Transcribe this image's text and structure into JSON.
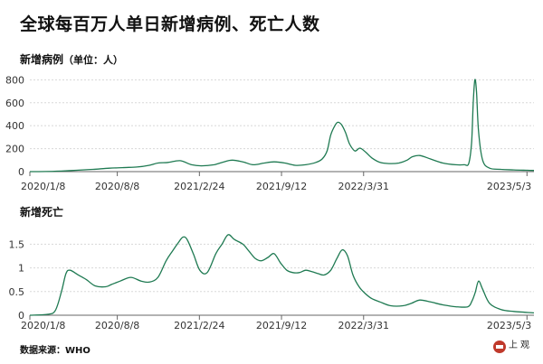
{
  "title": "全球每百万人单日新增病例、死亡人数",
  "source": "数据来源：WHO",
  "logo_text": "上观",
  "colors": {
    "line": "#1f7a52",
    "axis": "#666666",
    "grid": "#d8d8d8",
    "text": "#333333"
  },
  "chart_data": [
    {
      "type": "line",
      "title": "新增病例",
      "unit_label": "（单位：人）",
      "ylim": [
        0,
        850
      ],
      "yticks": [
        0,
        200,
        400,
        600,
        800
      ],
      "xlim": [
        "2020-01-08",
        "2023-05-20"
      ],
      "xticks": [
        "2020/1/8",
        "2020/8/8",
        "2021/2/24",
        "2021/9/12",
        "2022/3/31",
        "2023/5/3"
      ],
      "xtick_dates": [
        "2020-01-08",
        "2020-08-08",
        "2021-02-24",
        "2021-09-12",
        "2022-03-31",
        "2023-05-03"
      ],
      "grid": true,
      "series": [
        {
          "x": [
            "2020-01-08",
            "2020-02-15",
            "2020-03-25",
            "2020-05-01",
            "2020-06-10",
            "2020-07-20",
            "2020-08-20",
            "2020-09-25",
            "2020-10-25",
            "2020-11-15",
            "2020-12-10",
            "2021-01-08",
            "2021-02-05",
            "2021-03-01",
            "2021-04-01",
            "2021-04-25",
            "2021-05-15",
            "2021-06-10",
            "2021-07-05",
            "2021-08-01",
            "2021-08-25",
            "2021-09-20",
            "2021-10-15",
            "2021-11-10",
            "2021-12-05",
            "2021-12-20",
            "2022-01-01",
            "2022-01-10",
            "2022-01-20",
            "2022-01-27",
            "2022-02-05",
            "2022-02-15",
            "2022-02-25",
            "2022-03-10",
            "2022-03-22",
            "2022-04-05",
            "2022-04-20",
            "2022-05-10",
            "2022-06-01",
            "2022-06-25",
            "2022-07-15",
            "2022-07-28",
            "2022-08-15",
            "2022-09-10",
            "2022-10-10",
            "2022-11-10",
            "2022-12-01",
            "2022-12-12",
            "2022-12-19",
            "2022-12-23",
            "2022-12-27",
            "2022-12-31",
            "2023-01-05",
            "2023-01-15",
            "2023-02-01",
            "2023-03-01",
            "2023-04-01",
            "2023-05-01",
            "2023-05-20"
          ],
          "values": [
            0,
            1,
            5,
            12,
            20,
            30,
            35,
            40,
            55,
            75,
            80,
            95,
            60,
            50,
            60,
            85,
            100,
            85,
            60,
            75,
            85,
            75,
            55,
            60,
            80,
            110,
            180,
            320,
            400,
            430,
            410,
            340,
            240,
            180,
            205,
            170,
            120,
            80,
            70,
            75,
            100,
            130,
            140,
            110,
            75,
            60,
            60,
            70,
            250,
            600,
            800,
            700,
            350,
            100,
            30,
            20,
            15,
            12,
            10
          ]
        }
      ]
    },
    {
      "type": "line",
      "title": "新增死亡",
      "ylim": [
        0,
        1.85
      ],
      "yticks": [
        0,
        0.5,
        1,
        1.5
      ],
      "ytick_labels": [
        "0",
        "0.5",
        "1",
        "1.5"
      ],
      "xlim": [
        "2020-01-08",
        "2023-05-20"
      ],
      "xticks": [
        "2020/1/8",
        "2020/8/8",
        "2021/2/24",
        "2021/9/12",
        "2022/3/31",
        "2023/5/3"
      ],
      "xtick_dates": [
        "2020-01-08",
        "2020-08-08",
        "2021-02-24",
        "2021-09-12",
        "2022-03-31",
        "2023-05-03"
      ],
      "grid": true,
      "series": [
        {
          "x": [
            "2020-01-08",
            "2020-02-20",
            "2020-03-10",
            "2020-03-25",
            "2020-04-05",
            "2020-04-15",
            "2020-05-05",
            "2020-05-25",
            "2020-06-15",
            "2020-07-10",
            "2020-07-25",
            "2020-08-15",
            "2020-09-10",
            "2020-10-05",
            "2020-10-25",
            "2020-11-15",
            "2020-12-05",
            "2020-12-20",
            "2021-01-05",
            "2021-01-15",
            "2021-01-25",
            "2021-02-10",
            "2021-02-25",
            "2021-03-15",
            "2021-04-05",
            "2021-04-20",
            "2021-05-05",
            "2021-05-20",
            "2021-06-10",
            "2021-06-25",
            "2021-07-10",
            "2021-07-25",
            "2021-08-10",
            "2021-08-25",
            "2021-09-10",
            "2021-09-25",
            "2021-10-10",
            "2021-10-25",
            "2021-11-10",
            "2021-11-25",
            "2021-12-10",
            "2021-12-25",
            "2022-01-10",
            "2022-01-25",
            "2022-02-07",
            "2022-02-20",
            "2022-03-05",
            "2022-03-20",
            "2022-04-05",
            "2022-04-20",
            "2022-05-10",
            "2022-06-05",
            "2022-07-05",
            "2022-07-25",
            "2022-08-15",
            "2022-09-10",
            "2022-10-10",
            "2022-11-10",
            "2022-12-10",
            "2022-12-20",
            "2022-12-28",
            "2023-01-05",
            "2023-01-15",
            "2023-02-01",
            "2023-03-01",
            "2023-04-01",
            "2023-05-20"
          ],
          "values": [
            0,
            0.02,
            0.1,
            0.5,
            0.88,
            0.95,
            0.85,
            0.75,
            0.62,
            0.6,
            0.65,
            0.72,
            0.8,
            0.72,
            0.7,
            0.8,
            1.15,
            1.35,
            1.55,
            1.65,
            1.6,
            1.28,
            0.95,
            0.9,
            1.3,
            1.5,
            1.7,
            1.6,
            1.5,
            1.35,
            1.2,
            1.15,
            1.22,
            1.3,
            1.1,
            0.95,
            0.9,
            0.9,
            0.95,
            0.92,
            0.88,
            0.85,
            0.95,
            1.2,
            1.38,
            1.25,
            0.85,
            0.6,
            0.45,
            0.35,
            0.28,
            0.2,
            0.2,
            0.25,
            0.32,
            0.28,
            0.22,
            0.18,
            0.18,
            0.3,
            0.48,
            0.72,
            0.55,
            0.25,
            0.12,
            0.08,
            0.05
          ]
        }
      ]
    }
  ]
}
